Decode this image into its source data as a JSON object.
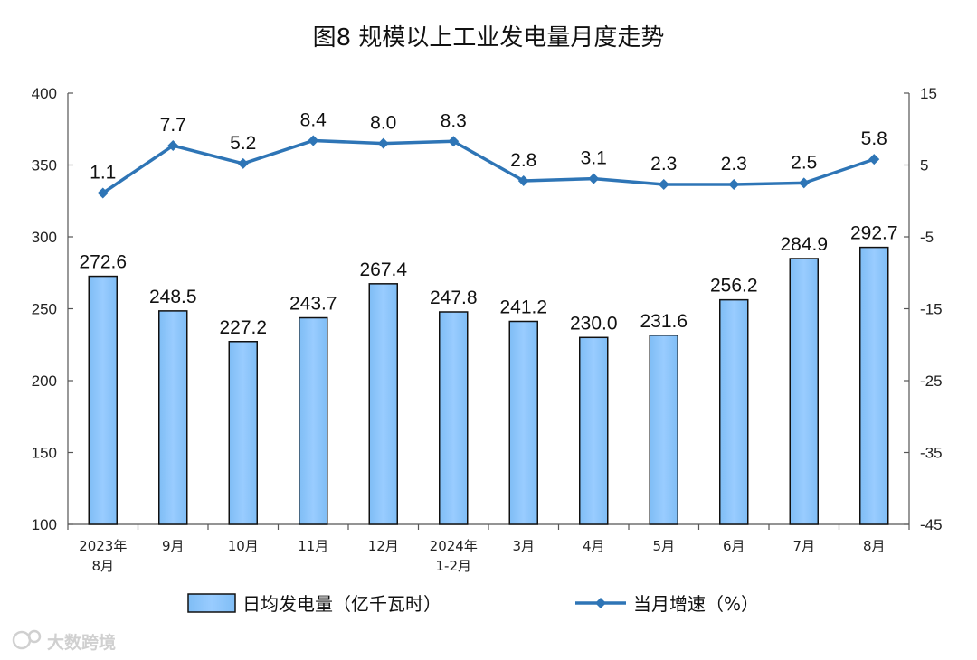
{
  "chart_data": {
    "type": "bar",
    "title": "图8  规模以上工业发电量月度走势",
    "categories": [
      [
        "2023年",
        "8月"
      ],
      [
        "9月"
      ],
      [
        "10月"
      ],
      [
        "11月"
      ],
      [
        "12月"
      ],
      [
        "2024年",
        "1-2月"
      ],
      [
        "3月"
      ],
      [
        "4月"
      ],
      [
        "5月"
      ],
      [
        "6月"
      ],
      [
        "7月"
      ],
      [
        "8月"
      ]
    ],
    "series": [
      {
        "name": "日均发电量（亿千瓦时）",
        "type": "bar",
        "axis": "left",
        "color": "#99ccff",
        "values": [
          272.6,
          248.5,
          227.2,
          243.7,
          267.4,
          247.8,
          241.2,
          230.0,
          231.6,
          256.2,
          284.9,
          292.7
        ]
      },
      {
        "name": "当月增速（%）",
        "type": "line",
        "axis": "right",
        "color": "#2e75b6",
        "values": [
          1.1,
          7.7,
          5.2,
          8.4,
          8.0,
          8.3,
          2.8,
          3.1,
          2.3,
          2.3,
          2.5,
          5.8
        ]
      }
    ],
    "left_axis": {
      "min": 100,
      "max": 400,
      "step": 50,
      "ticks": [
        "100",
        "150",
        "200",
        "250",
        "300",
        "350",
        "400"
      ]
    },
    "right_axis": {
      "min": -45,
      "max": 15,
      "step": 10,
      "ticks": [
        "-45",
        "-35",
        "-25",
        "-15",
        "-5",
        "5",
        "15"
      ]
    },
    "grid": false,
    "legend_position": "bottom"
  },
  "watermark": "大数跨境"
}
